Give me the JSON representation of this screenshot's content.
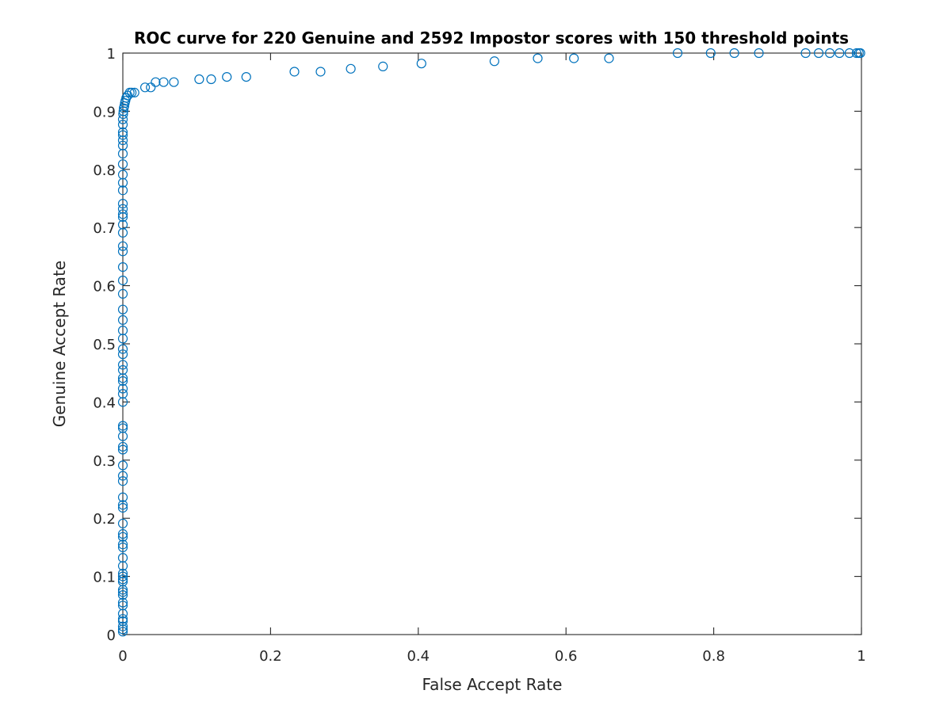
{
  "chart_data": {
    "type": "scatter",
    "title": "ROC curve for 220 Genuine and 2592 Impostor scores with 150 threshold points",
    "xlabel": "False Accept Rate",
    "ylabel": "Genuine Accept Rate",
    "xlim": [
      0,
      1
    ],
    "ylim": [
      0,
      1
    ],
    "xticks": [
      "0",
      "0.2",
      "0.4",
      "0.6",
      "0.8",
      "1"
    ],
    "yticks": [
      "0",
      "0.1",
      "0.2",
      "0.3",
      "0.4",
      "0.5",
      "0.6",
      "0.7",
      "0.8",
      "0.9",
      "1"
    ],
    "grid": false,
    "marker": "circle",
    "color": "#0072BD",
    "series": [
      {
        "points": [
          [
            0,
            0.005
          ],
          [
            0,
            0.009
          ],
          [
            0,
            0.014
          ],
          [
            0,
            0.023
          ],
          [
            0,
            0.027
          ],
          [
            0,
            0.036
          ],
          [
            0,
            0.05
          ],
          [
            0,
            0.055
          ],
          [
            0,
            0.068
          ],
          [
            0,
            0.073
          ],
          [
            0,
            0.077
          ],
          [
            0,
            0.091
          ],
          [
            0,
            0.095
          ],
          [
            0,
            0.1
          ],
          [
            0,
            0.105
          ],
          [
            0,
            0.118
          ],
          [
            0,
            0.132
          ],
          [
            0,
            0.15
          ],
          [
            0,
            0.155
          ],
          [
            0,
            0.168
          ],
          [
            0,
            0.173
          ],
          [
            0,
            0.191
          ],
          [
            0,
            0.218
          ],
          [
            0,
            0.223
          ],
          [
            0,
            0.236
          ],
          [
            0,
            0.264
          ],
          [
            0,
            0.273
          ],
          [
            0,
            0.291
          ],
          [
            0,
            0.318
          ],
          [
            0,
            0.323
          ],
          [
            0,
            0.341
          ],
          [
            0,
            0.355
          ],
          [
            0,
            0.359
          ],
          [
            0,
            0.4
          ],
          [
            0,
            0.414
          ],
          [
            0,
            0.423
          ],
          [
            0,
            0.436
          ],
          [
            0,
            0.441
          ],
          [
            0,
            0.455
          ],
          [
            0,
            0.464
          ],
          [
            0,
            0.482
          ],
          [
            0,
            0.491
          ],
          [
            0,
            0.509
          ],
          [
            0,
            0.523
          ],
          [
            0,
            0.541
          ],
          [
            0,
            0.559
          ],
          [
            0,
            0.586
          ],
          [
            0,
            0.609
          ],
          [
            0,
            0.632
          ],
          [
            0,
            0.659
          ],
          [
            0,
            0.668
          ],
          [
            0,
            0.691
          ],
          [
            0,
            0.705
          ],
          [
            0,
            0.718
          ],
          [
            0,
            0.723
          ],
          [
            0,
            0.732
          ],
          [
            0,
            0.741
          ],
          [
            0,
            0.764
          ],
          [
            0,
            0.777
          ],
          [
            0,
            0.791
          ],
          [
            0,
            0.809
          ],
          [
            0,
            0.827
          ],
          [
            0,
            0.841
          ],
          [
            0,
            0.85
          ],
          [
            0,
            0.859
          ],
          [
            0,
            0.864
          ],
          [
            0,
            0.877
          ],
          [
            0,
            0.886
          ],
          [
            0.0004,
            0.895
          ],
          [
            0.0008,
            0.9
          ],
          [
            0.0012,
            0.905
          ],
          [
            0.002,
            0.909
          ],
          [
            0.0027,
            0.914
          ],
          [
            0.0035,
            0.918
          ],
          [
            0.0046,
            0.923
          ],
          [
            0.0066,
            0.927
          ],
          [
            0.0093,
            0.932
          ],
          [
            0.012,
            0.932
          ],
          [
            0.0158,
            0.932
          ],
          [
            0.0301,
            0.941
          ],
          [
            0.0378,
            0.941
          ],
          [
            0.0444,
            0.95
          ],
          [
            0.0552,
            0.95
          ],
          [
            0.0691,
            0.95
          ],
          [
            0.1034,
            0.955
          ],
          [
            0.1196,
            0.955
          ],
          [
            0.1408,
            0.959
          ],
          [
            0.1671,
            0.959
          ],
          [
            0.2323,
            0.968
          ],
          [
            0.2677,
            0.968
          ],
          [
            0.3086,
            0.973
          ],
          [
            0.3522,
            0.977
          ],
          [
            0.4043,
            0.982
          ],
          [
            0.5031,
            0.986
          ],
          [
            0.5617,
            0.991
          ],
          [
            0.6107,
            0.991
          ],
          [
            0.6582,
            0.991
          ],
          [
            0.7511,
            1
          ],
          [
            0.7959,
            1
          ],
          [
            0.8279,
            1
          ],
          [
            0.8611,
            1
          ],
          [
            0.9244,
            1
          ],
          [
            0.9421,
            1
          ],
          [
            0.9572,
            1
          ],
          [
            0.9703,
            1
          ],
          [
            0.9838,
            1
          ],
          [
            0.9934,
            1
          ],
          [
            0.9965,
            1
          ],
          [
            0.9985,
            1
          ]
        ]
      }
    ]
  }
}
